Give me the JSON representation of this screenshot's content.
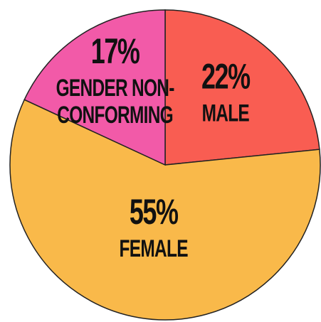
{
  "chart_data": {
    "type": "pie",
    "categories": [
      "MALE",
      "FEMALE",
      "GENDER NON-CONFORMING"
    ],
    "values": [
      22,
      55,
      17
    ],
    "value_labels": [
      "22%",
      "55%",
      "17%"
    ],
    "colors": [
      "#f95d52",
      "#f9b94a",
      "#f25aa8"
    ]
  }
}
